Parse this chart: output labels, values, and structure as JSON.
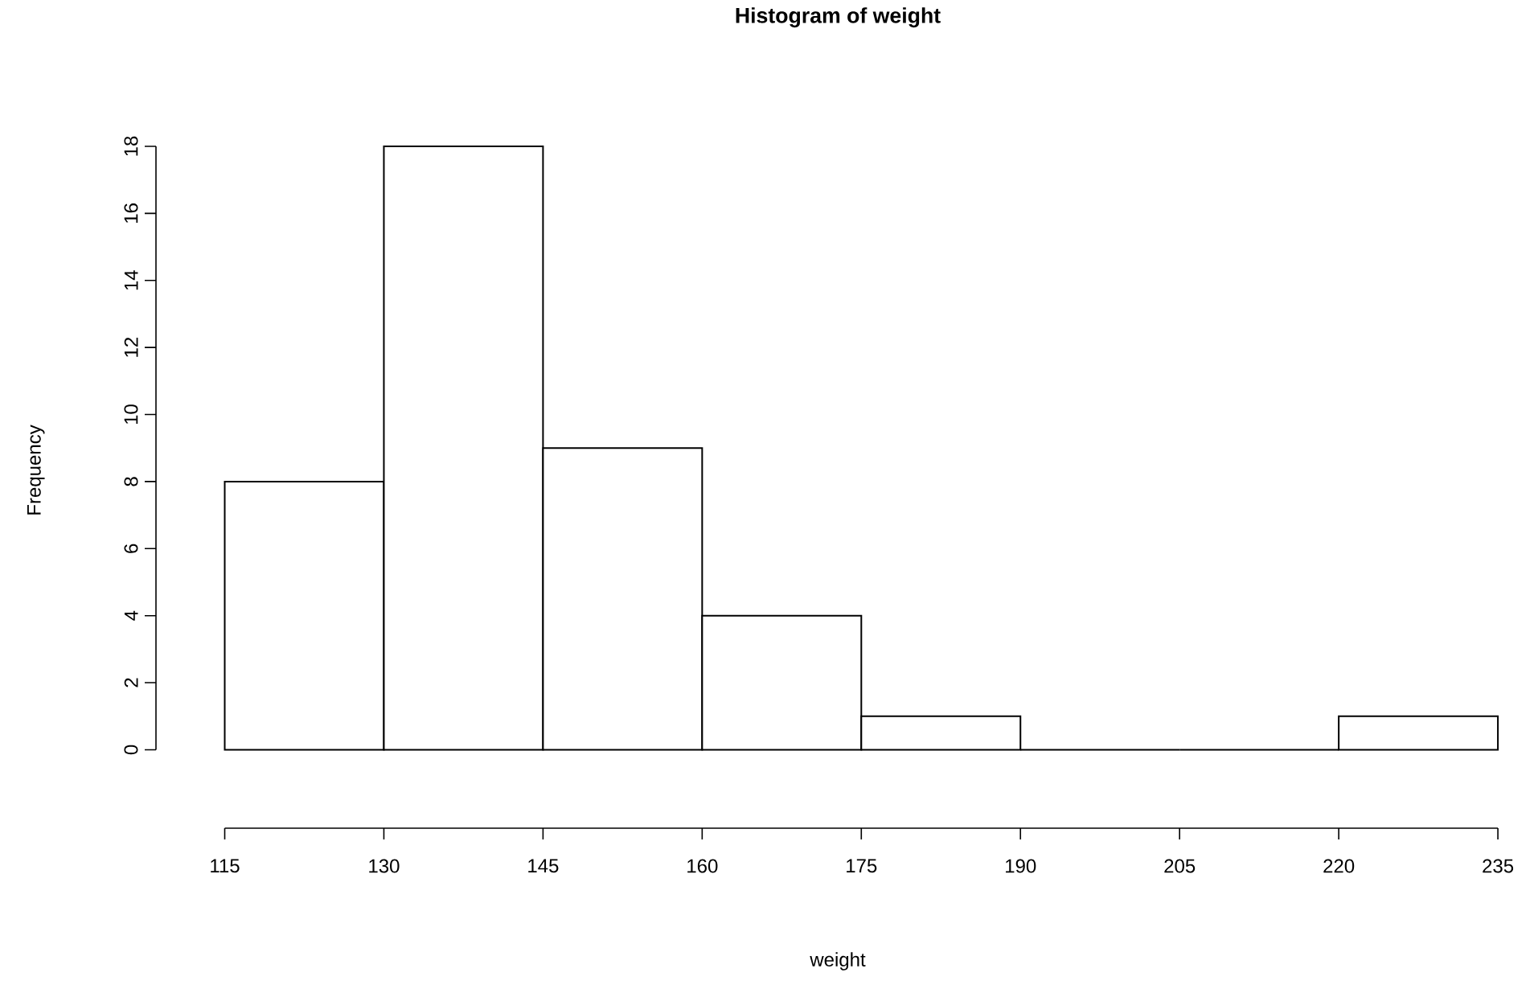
{
  "chart_data": {
    "type": "histogram",
    "title": "Histogram of weight",
    "xlabel": "weight",
    "ylabel": "Frequency",
    "bins": [
      115,
      130,
      145,
      160,
      175,
      190,
      205,
      220,
      235
    ],
    "values": [
      8,
      18,
      9,
      4,
      1,
      0,
      0,
      1
    ],
    "xlim": [
      115,
      235
    ],
    "ylim": [
      0,
      18
    ],
    "xticks": [
      115,
      130,
      145,
      160,
      175,
      190,
      205,
      220,
      235
    ],
    "yticks": [
      0,
      2,
      4,
      6,
      8,
      10,
      12,
      14,
      16,
      18
    ],
    "grid": false,
    "legend": false
  }
}
